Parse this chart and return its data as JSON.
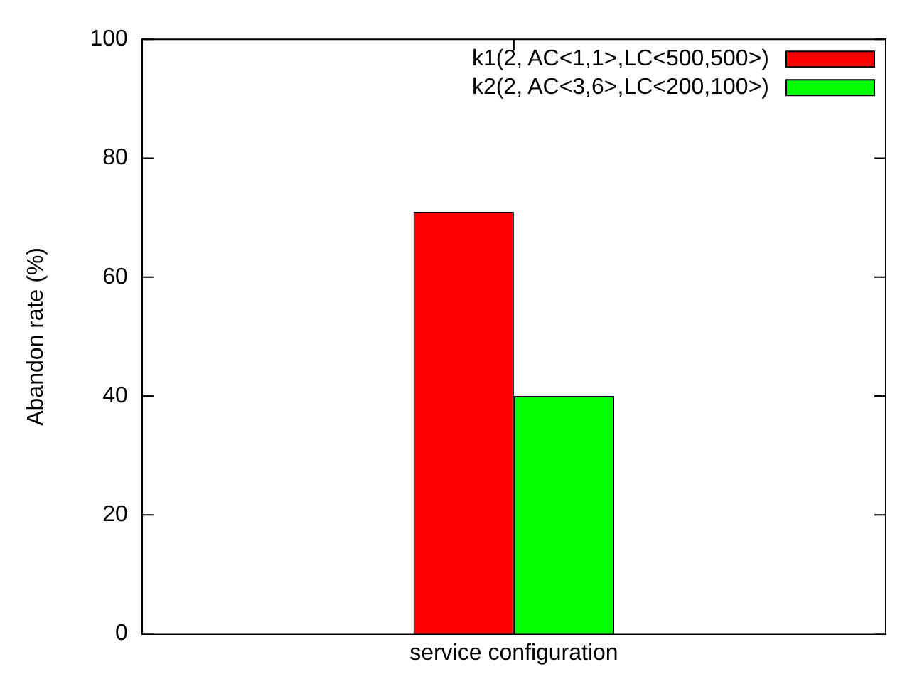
{
  "chart_data": {
    "type": "bar",
    "ylabel": "Abandon rate (%)",
    "categories": [
      "service configuration"
    ],
    "series": [
      {
        "name": "k1(2, AC<1,1>,LC<500,500>)",
        "color": "#ff0000",
        "values": [
          71
        ]
      },
      {
        "name": "k2(2, AC<3,6>,LC<200,100>)",
        "color": "#00ff00",
        "values": [
          40
        ]
      }
    ],
    "ylim": [
      0,
      100
    ],
    "yticks": [
      0,
      20,
      40,
      60,
      80,
      100
    ],
    "grid": false,
    "legend": "top right"
  }
}
